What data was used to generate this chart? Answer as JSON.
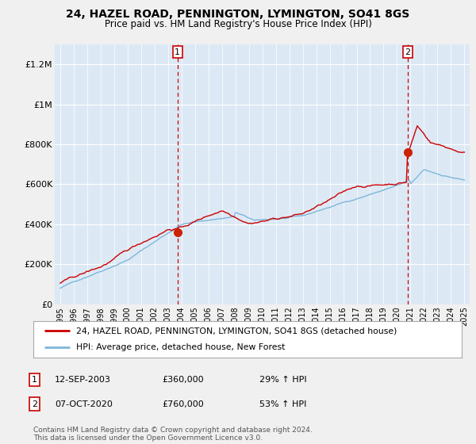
{
  "title": "24, HAZEL ROAD, PENNINGTON, LYMINGTON, SO41 8GS",
  "subtitle": "Price paid vs. HM Land Registry's House Price Index (HPI)",
  "ylabel_ticks": [
    "£0",
    "£200K",
    "£400K",
    "£600K",
    "£800K",
    "£1M",
    "£1.2M"
  ],
  "ytick_vals": [
    0,
    200000,
    400000,
    600000,
    800000,
    1000000,
    1200000
  ],
  "ylim": [
    0,
    1300000
  ],
  "xlim_start": 1994.6,
  "xlim_end": 2025.4,
  "hpi_color": "#7EB6D9",
  "price_color": "#CC0000",
  "bg_color": "#F0F0F0",
  "plot_bg": "#DCE9F5",
  "grid_color": "#FFFFFF",
  "ann1_x": 2003.7,
  "ann1_y": 360000,
  "ann2_x": 2020.77,
  "ann2_y": 760000,
  "legend_line1": "24, HAZEL ROAD, PENNINGTON, LYMINGTON, SO41 8GS (detached house)",
  "legend_line2": "HPI: Average price, detached house, New Forest",
  "ann1_label": "1",
  "ann1_date": "12-SEP-2003",
  "ann1_price": "£360,000",
  "ann1_pct": "29% ↑ HPI",
  "ann2_label": "2",
  "ann2_date": "07-OCT-2020",
  "ann2_price": "£760,000",
  "ann2_pct": "53% ↑ HPI",
  "footer": "Contains HM Land Registry data © Crown copyright and database right 2024.\nThis data is licensed under the Open Government Licence v3.0."
}
